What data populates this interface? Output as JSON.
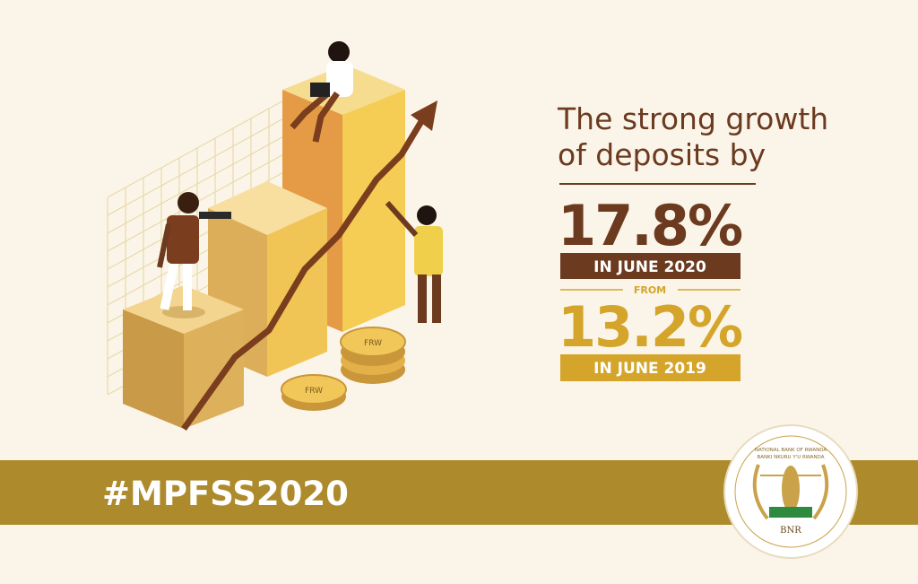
{
  "headline": [
    "The strong growth",
    "of deposits by"
  ],
  "current": {
    "value": "17.8%",
    "period": "IN JUNE 2020"
  },
  "connector": "FROM",
  "previous": {
    "value": "13.2%",
    "period": "IN JUNE 2019"
  },
  "hashtag": "#MPFSS2020",
  "coins": [
    "FRW",
    "FRW"
  ],
  "logo": {
    "name": "NATIONAL BANK OF RWANDA",
    "name_local": "BANKI NKURU Y'U RWANDA",
    "abbr": "BNR"
  }
}
